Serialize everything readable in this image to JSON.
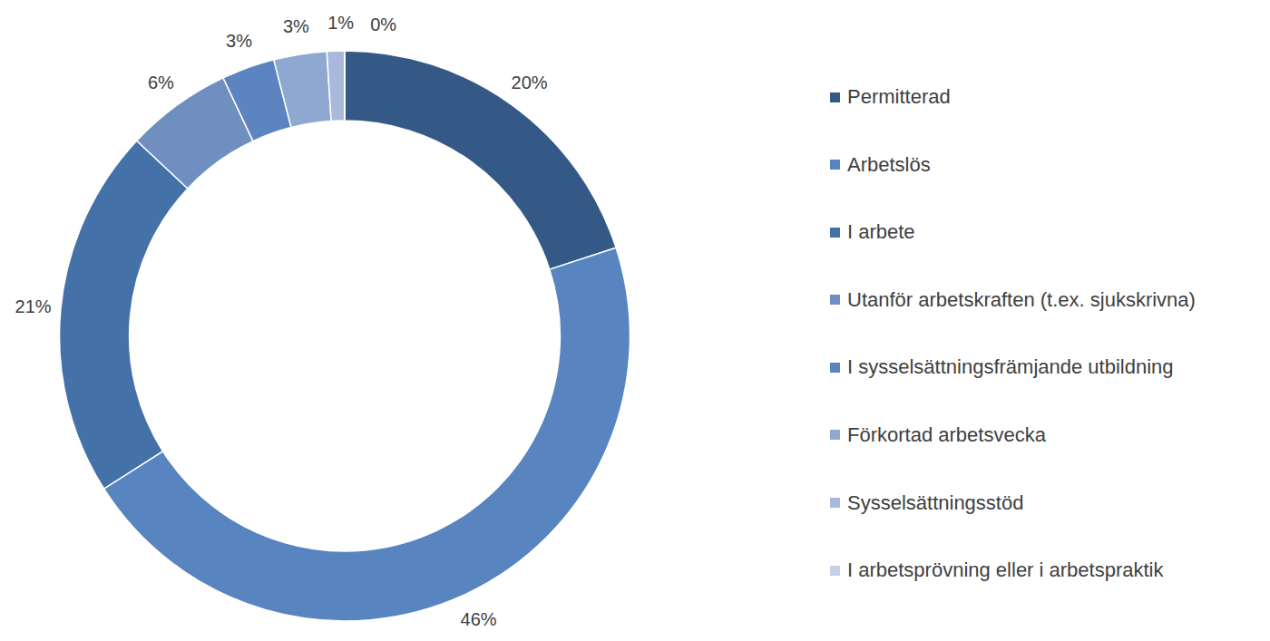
{
  "chart_data": {
    "type": "donut",
    "categories": [
      "Permitterad",
      "Arbetslös",
      "I arbete",
      "Utanför arbetskraften (t.ex. sjukskrivna)",
      "I sysselsättningsfrämjande utbildning",
      "Förkortad arbetsvecka",
      "Sysselsättningsstöd",
      "I arbetsprövning eller i arbetspraktik"
    ],
    "values": [
      20,
      46,
      21,
      6,
      3,
      3,
      1,
      0
    ],
    "value_labels": [
      "20%",
      "46%",
      "21%",
      "6%",
      "3%",
      "3%",
      "1%",
      "0%"
    ],
    "colors": [
      "#355986",
      "#5884c0",
      "#4472a8",
      "#6f8fc0",
      "#5b84c0",
      "#8fa8d0",
      "#a9b9dc",
      "#c5d0e8"
    ],
    "data_labels": true,
    "legend": "right"
  }
}
